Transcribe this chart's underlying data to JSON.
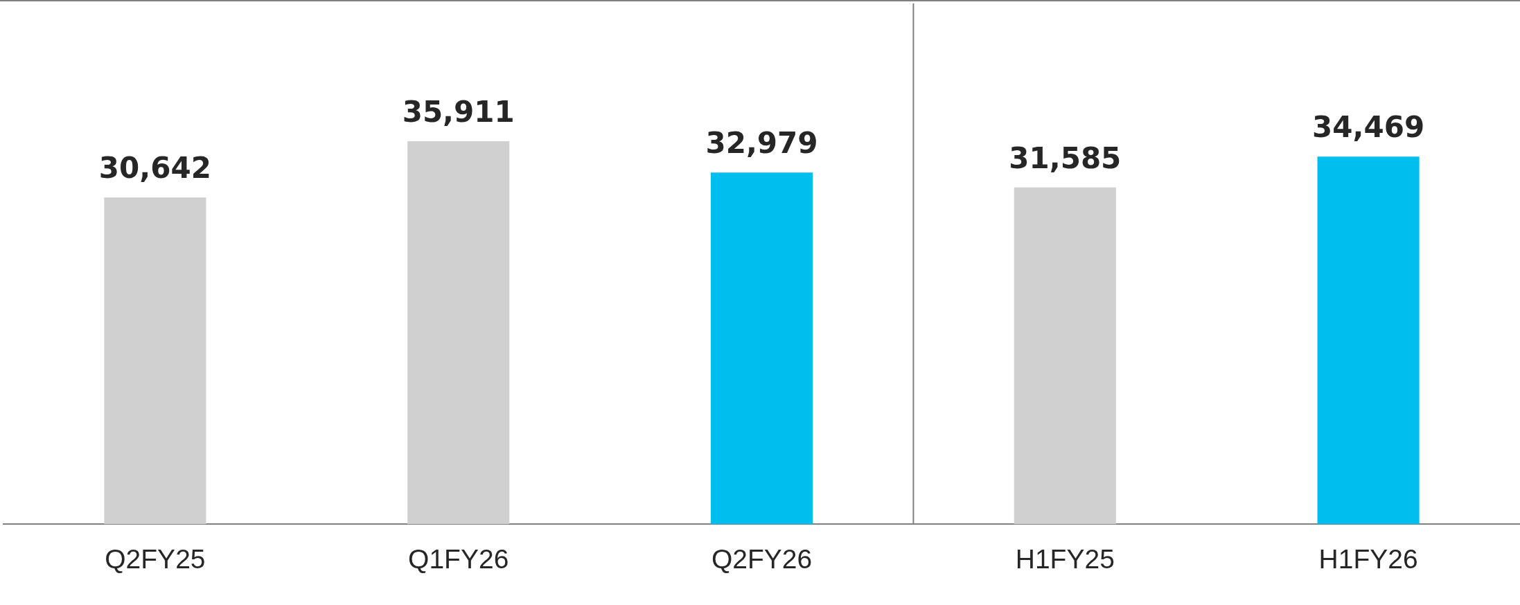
{
  "chart_data": {
    "type": "bar",
    "categories": [
      "Q2FY25",
      "Q1FY26",
      "Q2FY26",
      "H1FY25",
      "H1FY26"
    ],
    "values": [
      30642,
      35911,
      32979,
      31585,
      34469
    ],
    "colors": [
      "#d0d0d0",
      "#d0d0d0",
      "#00bfef",
      "#d0d0d0",
      "#00bfef"
    ],
    "value_labels": [
      "30,642",
      "35,911",
      "32,979",
      "31,585",
      "34,469"
    ],
    "grid": false,
    "legend": false,
    "tick_labels": "x"
  }
}
